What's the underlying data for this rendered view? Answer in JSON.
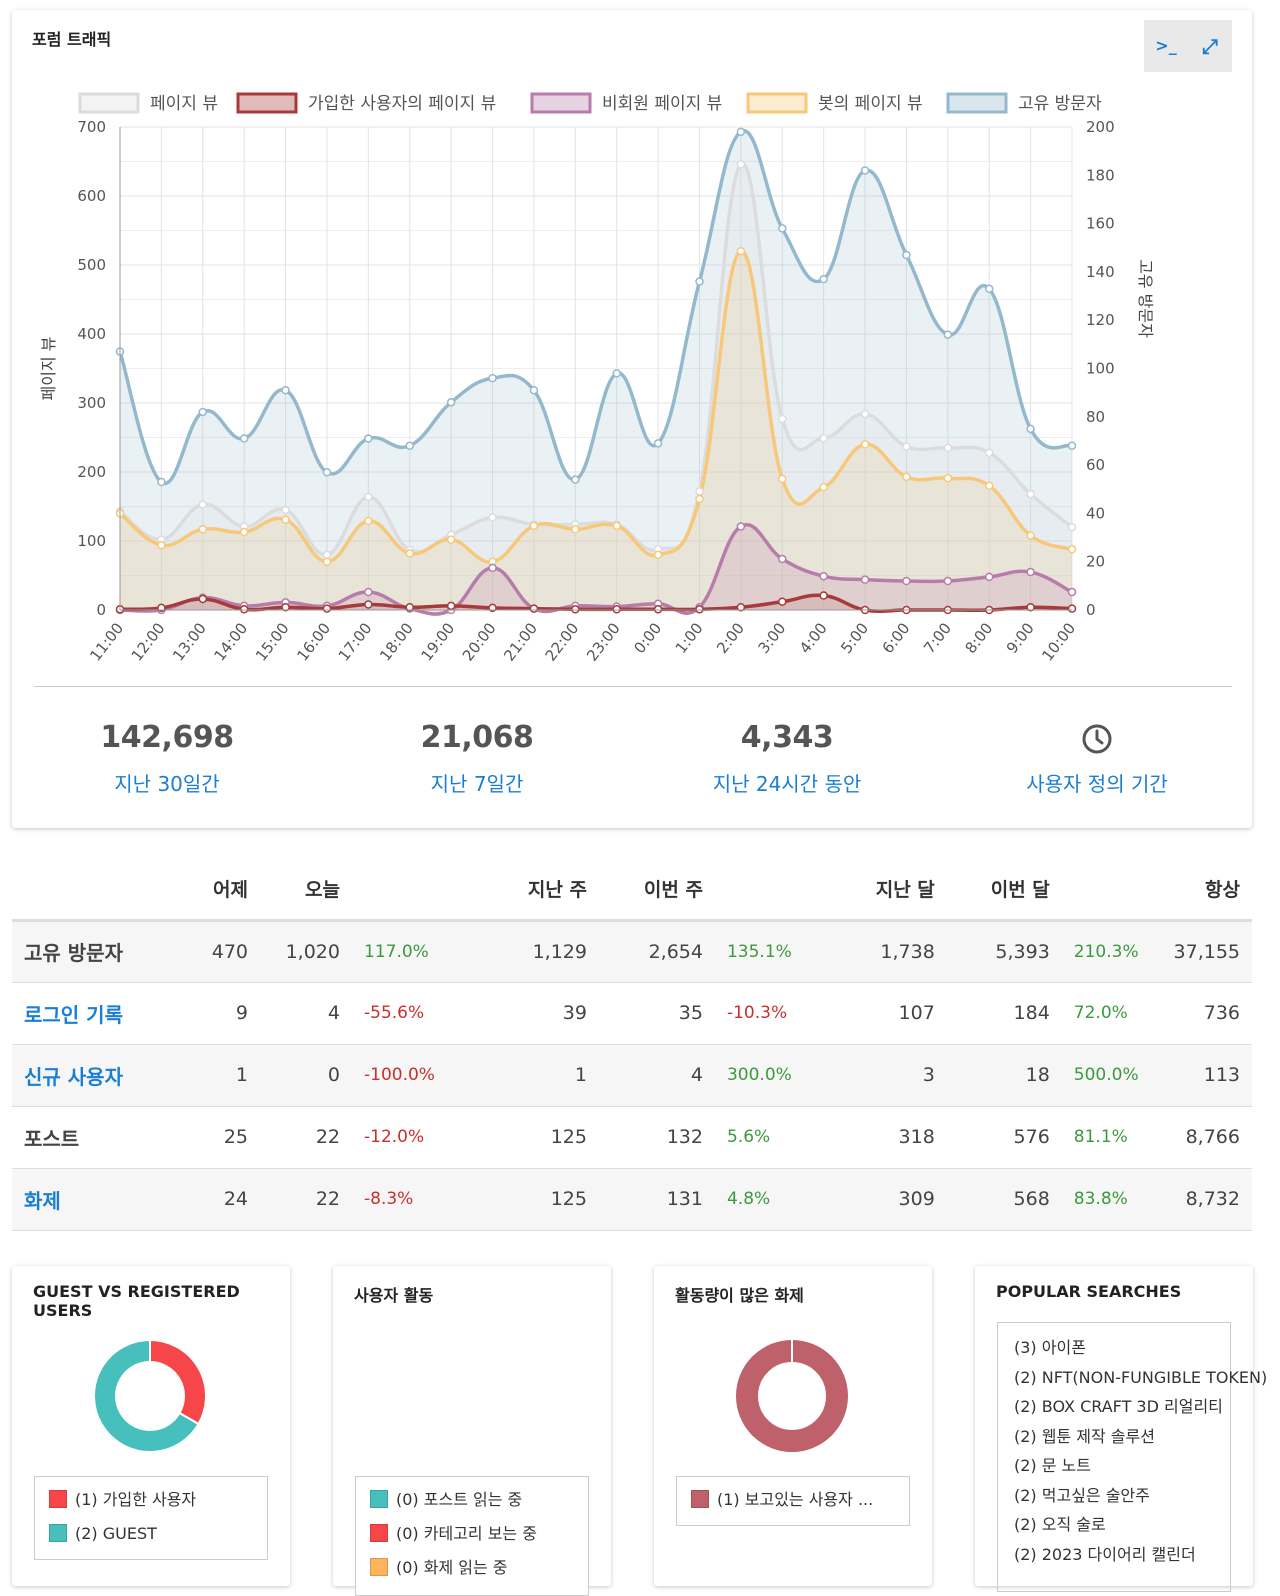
{
  "traffic": {
    "title": "포럼 트래픽",
    "tools": [
      {
        "name": "terminal-icon",
        "glyph": ">_"
      },
      {
        "name": "expand-icon",
        "glyph": "⤢"
      }
    ],
    "stats": [
      {
        "value": "142,698",
        "label": "지난 30일간"
      },
      {
        "value": "21,068",
        "label": "지난 7일간"
      },
      {
        "value": "4,343",
        "label": "지난 24시간 동안"
      },
      {
        "icon": "clock-icon",
        "label": "사용자 정의 기간"
      }
    ]
  },
  "chart_data": {
    "type": "line",
    "xlabel": "",
    "ylabel": "페이지 뷰",
    "y2label": "고유 방문자",
    "ylim": [
      0,
      700
    ],
    "y2lim": [
      0,
      200
    ],
    "yticks": [
      "0",
      "100",
      "200",
      "300",
      "400",
      "500",
      "600",
      "700"
    ],
    "y2ticks": [
      "0",
      "20",
      "40",
      "60",
      "80",
      "100",
      "120",
      "140",
      "160",
      "180",
      "200"
    ],
    "categories": [
      "11:00",
      "12:00",
      "13:00",
      "14:00",
      "15:00",
      "16:00",
      "17:00",
      "18:00",
      "19:00",
      "20:00",
      "21:00",
      "22:00",
      "23:00",
      "0:00",
      "1:00",
      "2:00",
      "3:00",
      "4:00",
      "5:00",
      "6:00",
      "7:00",
      "8:00",
      "9:00",
      "10:00"
    ],
    "series": [
      {
        "name": "페이지 뷰",
        "axis": "left",
        "stroke": "#dcdcdc",
        "fill": "rgba(220,220,220,0.2)",
        "values": [
          143,
          102,
          153,
          121,
          145,
          80,
          164,
          87,
          109,
          134,
          124,
          124,
          124,
          88,
          172,
          646,
          277,
          249,
          284,
          237,
          235,
          228,
          168,
          120
        ]
      },
      {
        "name": "가입한 사용자의 페이지 뷰",
        "axis": "left",
        "stroke": "#a83a3a",
        "fill": "rgba(168,58,58,0.12)",
        "values": [
          1,
          3,
          16,
          1,
          4,
          2,
          8,
          4,
          6,
          3,
          2,
          1,
          1,
          1,
          1,
          4,
          12,
          21,
          0,
          0,
          0,
          0,
          4,
          2
        ]
      },
      {
        "name": "비회원 페이지 뷰",
        "axis": "left",
        "stroke": "#b77daa",
        "fill": "rgba(183,125,170,0.2)",
        "values": [
          0,
          0,
          18,
          6,
          11,
          6,
          26,
          2,
          0,
          61,
          2,
          6,
          5,
          9,
          4,
          121,
          74,
          49,
          44,
          42,
          42,
          48,
          55,
          26
        ]
      },
      {
        "name": "봇의 페이지 뷰",
        "axis": "left",
        "stroke": "#f7c87a",
        "fill": "rgba(247,200,122,0.2)",
        "values": [
          140,
          94,
          117,
          113,
          131,
          70,
          129,
          82,
          102,
          70,
          122,
          117,
          122,
          80,
          161,
          520,
          190,
          178,
          240,
          193,
          191,
          180,
          108,
          88
        ]
      },
      {
        "name": "고유 방문자",
        "axis": "right",
        "stroke": "#94b8cc",
        "fill": "rgba(148,184,204,0.2)",
        "values": [
          107,
          53,
          82,
          71,
          91,
          57,
          71,
          68,
          86,
          96,
          91,
          54,
          98,
          69,
          136,
          198,
          158,
          137,
          182,
          147,
          114,
          133,
          75,
          68
        ]
      }
    ]
  },
  "table": {
    "headers": [
      "",
      "어제",
      "오늘",
      "",
      "지난 주",
      "이번 주",
      "",
      "지난 달",
      "이번 달",
      "",
      "항상"
    ],
    "rows": [
      {
        "label": "고유 방문자",
        "link": false,
        "cells": [
          "470",
          "1,020",
          "117.0%",
          "1,129",
          "2,654",
          "135.1%",
          "1,738",
          "5,393",
          "210.3%",
          "37,155"
        ],
        "pct_sign": [
          "pos",
          "pos",
          "pos"
        ]
      },
      {
        "label": "로그인 기록",
        "link": true,
        "cells": [
          "9",
          "4",
          "-55.6%",
          "39",
          "35",
          "-10.3%",
          "107",
          "184",
          "72.0%",
          "736"
        ],
        "pct_sign": [
          "neg",
          "neg",
          "pos"
        ]
      },
      {
        "label": "신규 사용자",
        "link": true,
        "cells": [
          "1",
          "0",
          "-100.0%",
          "1",
          "4",
          "300.0%",
          "3",
          "18",
          "500.0%",
          "113"
        ],
        "pct_sign": [
          "neg",
          "pos",
          "pos"
        ]
      },
      {
        "label": "포스트",
        "link": false,
        "cells": [
          "25",
          "22",
          "-12.0%",
          "125",
          "132",
          "5.6%",
          "318",
          "576",
          "81.1%",
          "8,766"
        ],
        "pct_sign": [
          "neg",
          "pos",
          "pos"
        ]
      },
      {
        "label": "화제",
        "link": true,
        "cells": [
          "24",
          "22",
          "-8.3%",
          "125",
          "131",
          "4.8%",
          "309",
          "568",
          "83.8%",
          "8,732"
        ],
        "pct_sign": [
          "neg",
          "pos",
          "pos"
        ]
      }
    ]
  },
  "guest_vs_registered": {
    "title": "GUEST VS REGISTERED USERS",
    "chart_data": {
      "type": "pie",
      "labels": [
        "가입한 사용자",
        "GUEST"
      ],
      "values": [
        1,
        2
      ],
      "colors": [
        "#f7464a",
        "#46bfbd"
      ]
    },
    "legend": [
      {
        "label": "(1) 가입한 사용자",
        "color": "#f7464a"
      },
      {
        "label": "(2) GUEST",
        "color": "#46bfbd"
      }
    ]
  },
  "user_activity": {
    "title": "사용자 활동",
    "legend": [
      {
        "label": "(0) 포스트 읽는 중",
        "color": "#46bfbd"
      },
      {
        "label": "(0) 카테고리 보는 중",
        "color": "#f7464a"
      },
      {
        "label": "(0) 화제 읽는 중",
        "color": "#fdb45c"
      }
    ]
  },
  "active_topics": {
    "title": "활동량이 많은 화제",
    "chart_data": {
      "type": "pie",
      "labels": [
        "보고있는 사용자 ..."
      ],
      "values": [
        1
      ],
      "colors": [
        "#bf616a"
      ]
    },
    "legend": [
      {
        "label": "(1) 보고있는 사용자 ...",
        "color": "#bf616a"
      }
    ]
  },
  "popular_searches": {
    "title": "POPULAR SEARCHES",
    "items": [
      "(3) 아이폰",
      "(2) NFT(NON-FUNGIBLE TOKEN)",
      "(2) BOX CRAFT 3D 리얼리티",
      "(2) 웹툰 제작 솔루션",
      "(2) 문 노트",
      "(2) 먹고싶은 술안주",
      "(2) 오직 술로",
      "(2) 2023 다이어리 캘린더"
    ]
  }
}
